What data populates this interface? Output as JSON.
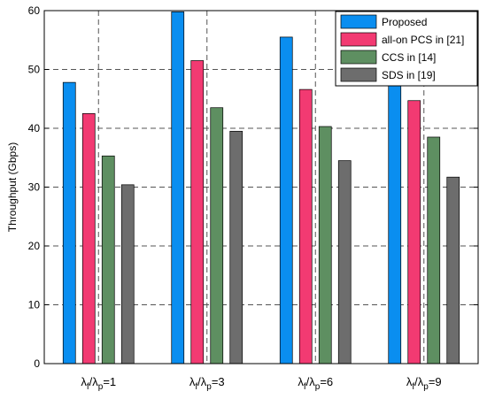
{
  "chart_data": {
    "type": "bar",
    "categories": [
      {
        "lambda": "λ",
        "sub1": "f",
        "slash": "/",
        "sub2": "p",
        "eq": "=1"
      },
      {
        "lambda": "λ",
        "sub1": "f",
        "slash": "/",
        "sub2": "p",
        "eq": "=3"
      },
      {
        "lambda": "λ",
        "sub1": "f",
        "slash": "/",
        "sub2": "p",
        "eq": "=6"
      },
      {
        "lambda": "λ",
        "sub1": "f",
        "slash": "/",
        "sub2": "p",
        "eq": "=9"
      }
    ],
    "series": [
      {
        "name": "Proposed",
        "color": "#0a8ef0",
        "values": [
          47.8,
          59.8,
          55.5,
          47.5
        ]
      },
      {
        "name": "all-on PCS in [21]",
        "color": "#f23a72",
        "values": [
          42.5,
          51.5,
          46.6,
          44.7
        ]
      },
      {
        "name": "CCS in [14]",
        "color": "#5e8f61",
        "values": [
          35.3,
          43.5,
          40.3,
          38.5
        ]
      },
      {
        "name": "SDS in [19]",
        "color": "#6d6d6d",
        "values": [
          30.4,
          39.5,
          34.5,
          31.7
        ]
      }
    ],
    "title": "",
    "xlabel": "",
    "ylabel": "Throughput (Gbps)",
    "ylim": [
      0,
      60
    ],
    "yticks": [
      "0",
      "10",
      "20",
      "30",
      "40",
      "50",
      "60"
    ],
    "grid": "dashed",
    "legend": "top-right"
  }
}
